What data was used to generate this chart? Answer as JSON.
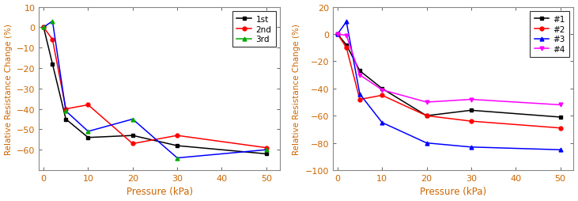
{
  "left": {
    "pressure": [
      0,
      2,
      5,
      10,
      20,
      30,
      50
    ],
    "series_order": [
      "1st",
      "2nd",
      "3rd"
    ],
    "series": {
      "1st": {
        "color": "#000000",
        "marker": "s",
        "values": [
          0,
          -18,
          -45,
          -54,
          -53,
          -58,
          -62
        ]
      },
      "2nd": {
        "color": "#ff0000",
        "marker": "o",
        "values": [
          0,
          -6,
          -40,
          -38,
          -57,
          -53,
          -59
        ]
      },
      "3rd": {
        "color": "#0000ff",
        "marker": "^",
        "values": [
          0,
          3,
          -41,
          -51,
          -45,
          -64,
          -60
        ]
      }
    },
    "ylabel": "Relative Resistance Change (%)",
    "xlabel": "Pressure (kPa)",
    "ylim": [
      -70,
      10
    ],
    "yticks": [
      10,
      0,
      -10,
      -20,
      -30,
      -40,
      -50,
      -60
    ],
    "xlim": [
      -1,
      53
    ],
    "xticks": [
      0,
      10,
      20,
      30,
      40,
      50
    ]
  },
  "right": {
    "pressure": [
      0,
      2,
      5,
      10,
      20,
      30,
      50
    ],
    "series_order": [
      "#1",
      "#2",
      "#3",
      "#4"
    ],
    "series": {
      "#1": {
        "color": "#000000",
        "marker": "s",
        "values": [
          0,
          -8,
          -27,
          -40,
          -60,
          -56,
          -61
        ]
      },
      "#2": {
        "color": "#ff0000",
        "marker": "o",
        "values": [
          0,
          -10,
          -48,
          -45,
          -60,
          -64,
          -69
        ]
      },
      "#3": {
        "color": "#0000ff",
        "marker": "^",
        "values": [
          0,
          9,
          -44,
          -65,
          -80,
          -83,
          -85
        ]
      },
      "#4": {
        "color": "#ff00ff",
        "marker": "v",
        "values": [
          0,
          -1,
          -30,
          -41,
          -50,
          -48,
          -52
        ]
      }
    },
    "ylabel": "Relative Resistance Change (%)",
    "xlabel": "Pressure (kPa)",
    "ylim": [
      -100,
      20
    ],
    "yticks": [
      20,
      0,
      -20,
      -40,
      -60,
      -80,
      -100
    ],
    "xlim": [
      -1,
      53
    ],
    "xticks": [
      0,
      10,
      20,
      30,
      40,
      50
    ]
  },
  "left_legend_color": "#00aa00",
  "axis_label_color": "#cc6600",
  "tick_color": "#cc6600",
  "spine_color": "#888888"
}
